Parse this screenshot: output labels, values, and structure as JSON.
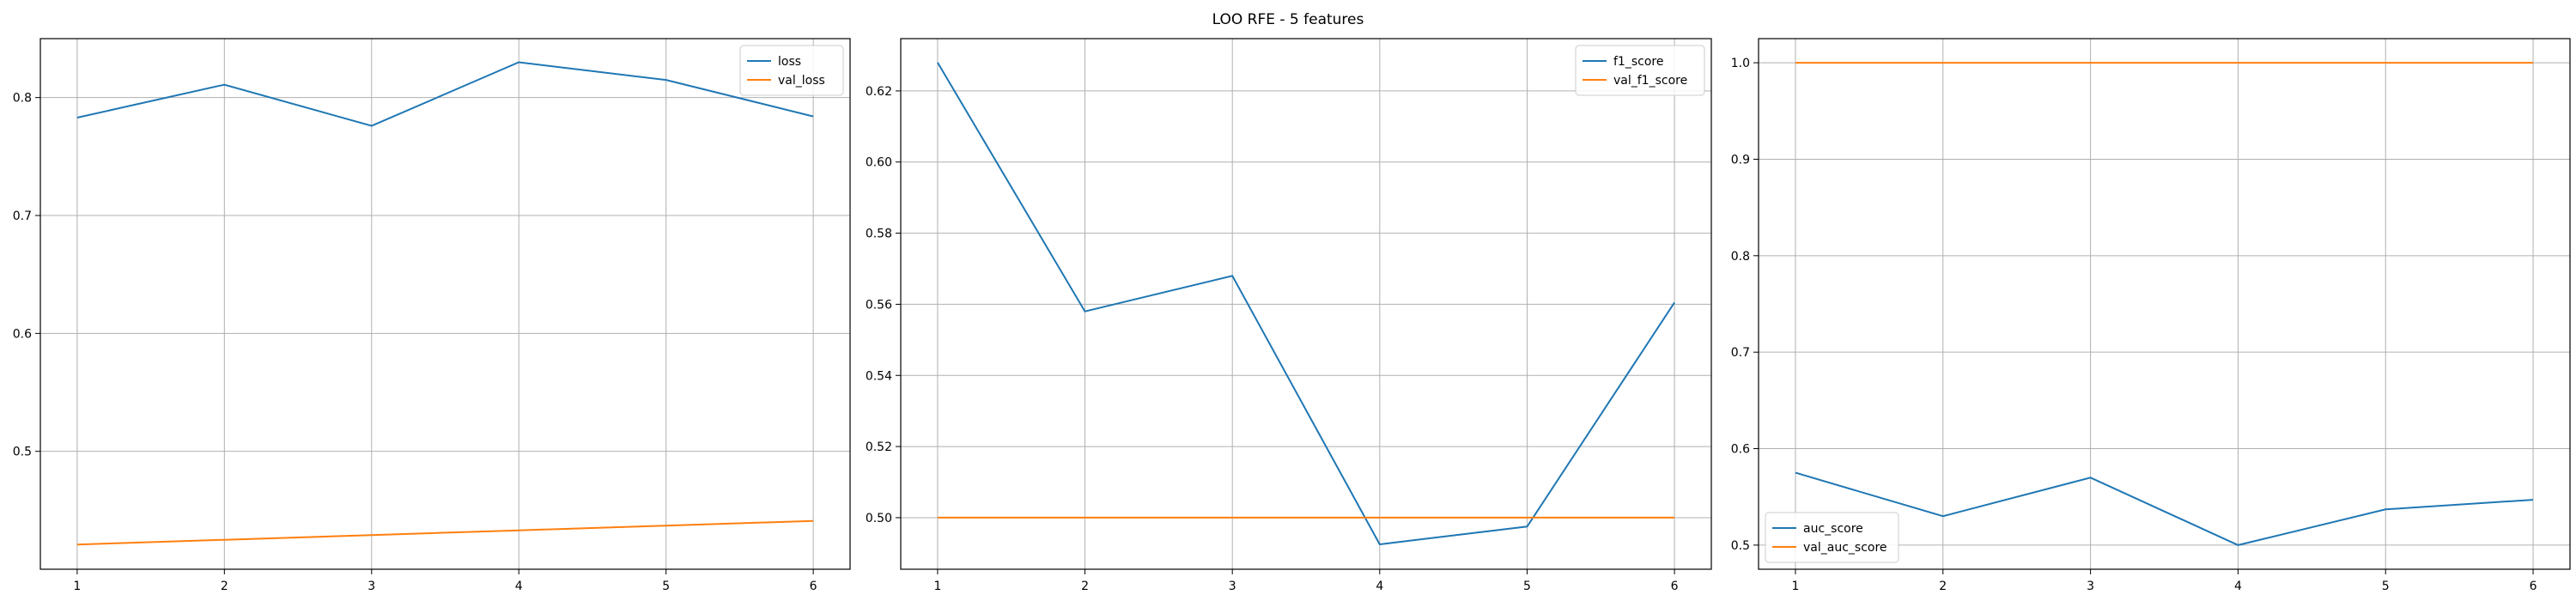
{
  "suptitle": "LOO RFE - 5 features",
  "colors": {
    "blue": "#1f77b4",
    "orange": "#ff7f0e"
  },
  "chart_data": [
    {
      "type": "line",
      "grid": true,
      "legend_loc": "upper right",
      "x": [
        1,
        2,
        3,
        4,
        5,
        6
      ],
      "xticks": [
        "1",
        "2",
        "3",
        "4",
        "5",
        "6"
      ],
      "xlim": [
        0.75,
        6.25
      ],
      "ylim": [
        0.4,
        0.85
      ],
      "yticks": [
        0.5,
        0.6,
        0.7,
        0.8
      ],
      "ytick_labels": [
        "0.5",
        "0.6",
        "0.7",
        "0.8"
      ],
      "series": [
        {
          "name": "loss",
          "color": "#1f77b4",
          "values": [
            0.783,
            0.811,
            0.776,
            0.83,
            0.815,
            0.784
          ]
        },
        {
          "name": "val_loss",
          "color": "#ff7f0e",
          "values": [
            0.421,
            0.425,
            0.429,
            0.433,
            0.437,
            0.441
          ]
        }
      ]
    },
    {
      "type": "line",
      "grid": true,
      "legend_loc": "upper right",
      "x": [
        1,
        2,
        3,
        4,
        5,
        6
      ],
      "xticks": [
        "1",
        "2",
        "3",
        "4",
        "5",
        "6"
      ],
      "xlim": [
        0.75,
        6.25
      ],
      "ylim": [
        0.4855,
        0.6347
      ],
      "yticks": [
        0.5,
        0.52,
        0.54,
        0.56,
        0.58,
        0.6,
        0.62
      ],
      "ytick_labels": [
        "0.50",
        "0.52",
        "0.54",
        "0.56",
        "0.58",
        "0.60",
        "0.62"
      ],
      "series": [
        {
          "name": "f1_score",
          "color": "#1f77b4",
          "values": [
            0.628,
            0.558,
            0.568,
            0.4925,
            0.4975,
            0.5605
          ]
        },
        {
          "name": "val_f1_score",
          "color": "#ff7f0e",
          "values": [
            0.5,
            0.5,
            0.5,
            0.5,
            0.5,
            0.5
          ]
        }
      ]
    },
    {
      "type": "line",
      "grid": true,
      "legend_loc": "lower left",
      "x": [
        1,
        2,
        3,
        4,
        5,
        6
      ],
      "xticks": [
        "1",
        "2",
        "3",
        "4",
        "5",
        "6"
      ],
      "xlim": [
        0.75,
        6.25
      ],
      "ylim": [
        0.475,
        1.025
      ],
      "yticks": [
        0.5,
        0.6,
        0.7,
        0.8,
        0.9,
        1.0
      ],
      "ytick_labels": [
        "0.5",
        "0.6",
        "0.7",
        "0.8",
        "0.9",
        "1.0"
      ],
      "series": [
        {
          "name": "auc_score",
          "color": "#1f77b4",
          "values": [
            0.575,
            0.53,
            0.57,
            0.5,
            0.537,
            0.547
          ]
        },
        {
          "name": "val_auc_score",
          "color": "#ff7f0e",
          "values": [
            1.0,
            1.0,
            1.0,
            1.0,
            1.0,
            1.0
          ]
        }
      ]
    }
  ]
}
